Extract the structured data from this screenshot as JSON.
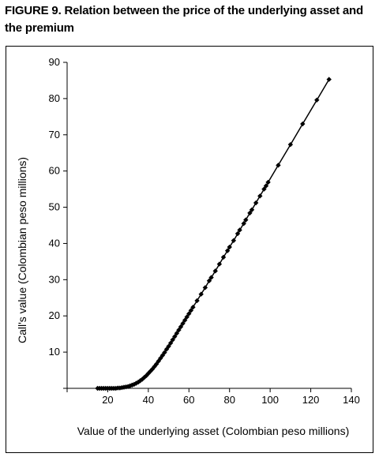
{
  "figure": {
    "title": "FIGURE 9.  Relation between the price of the underlying asset and the premium"
  },
  "chart_data": {
    "type": "line",
    "title": "FIGURE 9.  Relation between the price of the underlying asset and the premium",
    "xlabel": "Value of the underlying asset (Colombian peso millions)",
    "ylabel": "Call's value (Colombian peso millions)",
    "xlim": [
      0,
      140
    ],
    "ylim": [
      0,
      90
    ],
    "xticks": [
      20,
      40,
      60,
      80,
      100,
      120,
      140
    ],
    "yticks": [
      10,
      20,
      30,
      40,
      50,
      60,
      70,
      80,
      90
    ],
    "grid": false,
    "legend": "none",
    "series": [
      {
        "marker": "diamond",
        "color": "#000000",
        "x": [
          15,
          16,
          17,
          18,
          19,
          20,
          21,
          22,
          23,
          24,
          25,
          26,
          27,
          28,
          29,
          30,
          31,
          32,
          33,
          34,
          35,
          36,
          37,
          38,
          39,
          40,
          41,
          42,
          43,
          44,
          45,
          46,
          47,
          48,
          49,
          50,
          51,
          52,
          53,
          54,
          55,
          56,
          57,
          58,
          59,
          60,
          61,
          62,
          64,
          66,
          68,
          70,
          71,
          73,
          75,
          77,
          79,
          80,
          82,
          84,
          85,
          87,
          88,
          90,
          91,
          93,
          95,
          97,
          98,
          99,
          104,
          110,
          116,
          123,
          129
        ],
        "y": [
          0.0,
          0.0,
          0.0,
          0.0,
          0.0,
          0.0,
          0.0,
          0.0,
          0.0,
          0.0,
          0.1,
          0.1,
          0.2,
          0.3,
          0.4,
          0.5,
          0.7,
          0.9,
          1.1,
          1.4,
          1.7,
          2.1,
          2.5,
          3.0,
          3.5,
          4.1,
          4.7,
          5.3,
          6.0,
          6.7,
          7.5,
          8.3,
          9.1,
          9.9,
          10.8,
          11.6,
          12.5,
          13.4,
          14.3,
          15.2,
          16.1,
          17.0,
          17.9,
          18.8,
          19.7,
          20.6,
          21.5,
          22.4,
          24.2,
          26.0,
          27.8,
          29.7,
          30.6,
          32.4,
          34.3,
          36.2,
          38.0,
          39.0,
          40.8,
          42.7,
          43.7,
          45.5,
          46.5,
          48.4,
          49.3,
          51.2,
          53.1,
          55.0,
          55.9,
          56.9,
          61.6,
          67.3,
          73.0,
          79.6,
          85.3
        ]
      }
    ]
  }
}
